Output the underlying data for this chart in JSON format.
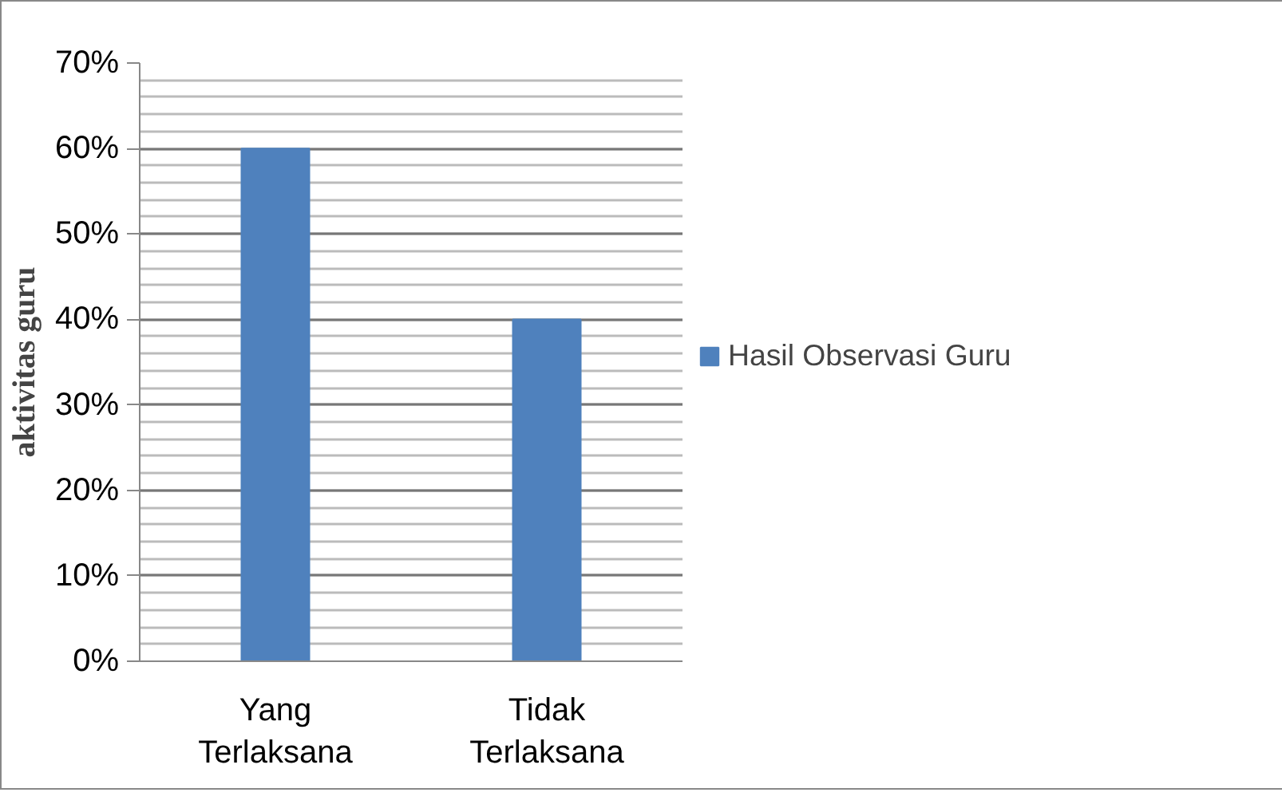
{
  "chart_data": {
    "type": "bar",
    "ylabel": "aktivitas guru",
    "categories": [
      "Yang Terlaksana",
      "Tidak Terlaksana"
    ],
    "series": [
      {
        "name": "Hasil Observasi Guru",
        "color": "#4f81bd",
        "values": [
          60,
          40
        ]
      }
    ],
    "ylim": [
      0,
      70
    ],
    "yticks": [
      {
        "value": 0,
        "label": "0%"
      },
      {
        "value": 10,
        "label": "10%"
      },
      {
        "value": 20,
        "label": "20%"
      },
      {
        "value": 30,
        "label": "30%"
      },
      {
        "value": 40,
        "label": "40%"
      },
      {
        "value": 50,
        "label": "50%"
      },
      {
        "value": 60,
        "label": "60%"
      },
      {
        "value": 70,
        "label": "70%"
      }
    ],
    "grid": "y",
    "legend": "right"
  }
}
